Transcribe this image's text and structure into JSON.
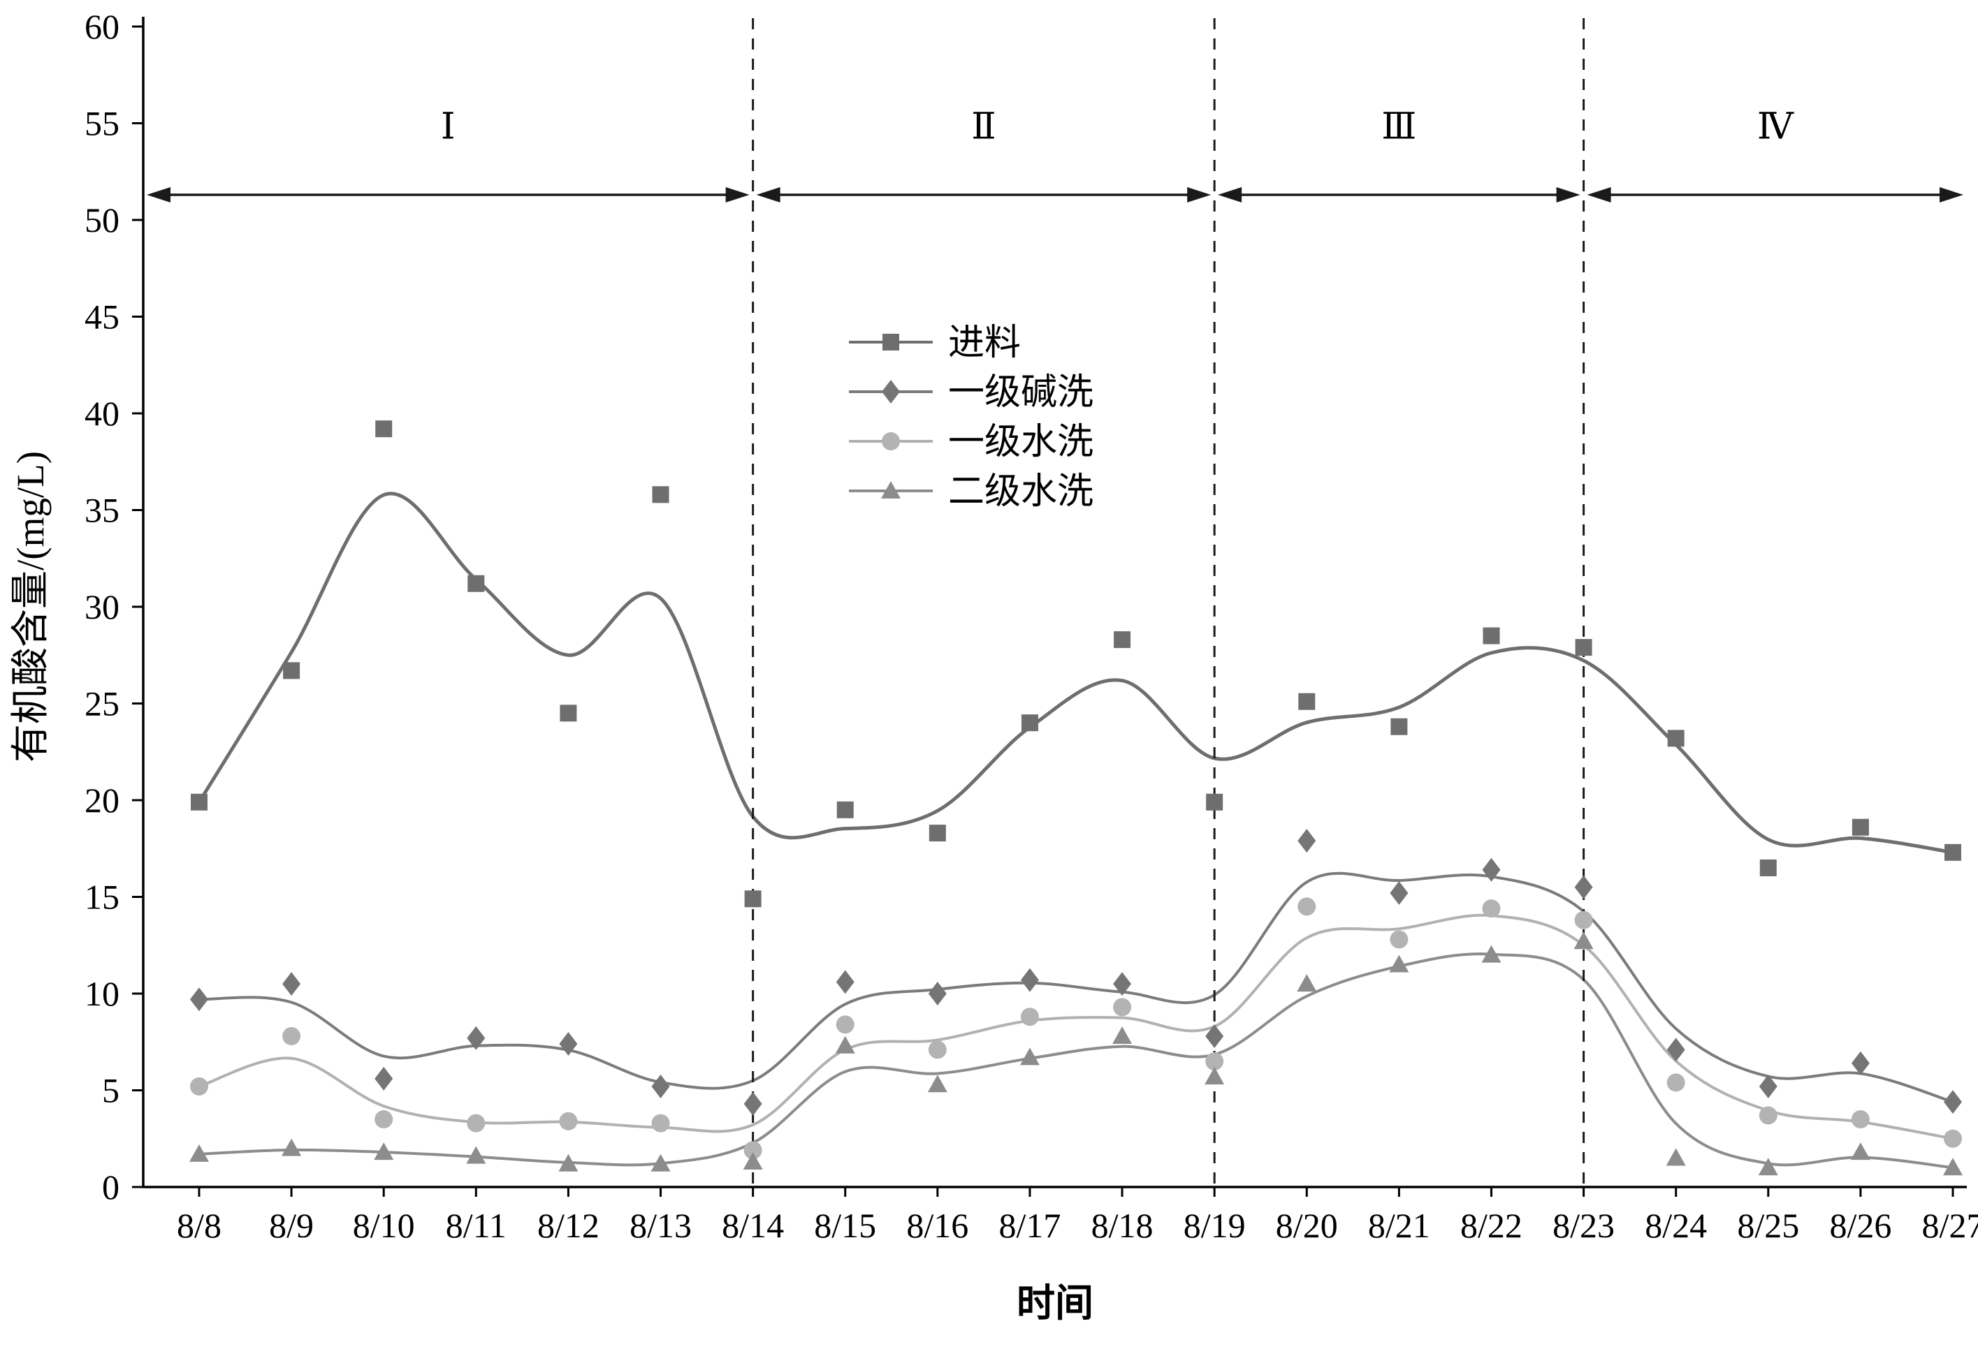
{
  "chart_data": {
    "type": "line",
    "title": "",
    "xlabel": "时间",
    "ylabel": "有机酸含量/(mg/L)",
    "ylim": [
      0,
      60
    ],
    "yticks": [
      0,
      5,
      10,
      15,
      20,
      25,
      30,
      35,
      40,
      45,
      50,
      55,
      60
    ],
    "grid": false,
    "legend_position": "inside-upper-center-left",
    "smoothing": "b-spline",
    "categories": [
      "8/8",
      "8/9",
      "8/10",
      "8/11",
      "8/12",
      "8/13",
      "8/14",
      "8/15",
      "8/16",
      "8/17",
      "8/18",
      "8/19",
      "8/20",
      "8/21",
      "8/22",
      "8/23",
      "8/24",
      "8/25",
      "8/26",
      "8/27"
    ],
    "series": [
      {
        "id": "feed",
        "name": "进料",
        "marker": "square",
        "marker_icon": "square-marker-icon",
        "color": "#6e6e6e",
        "line_color": "#6e6e6e",
        "line_width": 5,
        "values": [
          19.9,
          26.7,
          39.2,
          31.2,
          24.5,
          35.8,
          14.9,
          19.5,
          18.3,
          24.0,
          28.3,
          19.9,
          25.1,
          23.8,
          28.5,
          27.9,
          23.2,
          16.5,
          18.6,
          17.3
        ]
      },
      {
        "id": "alkali-wash-1",
        "name": "一级碱洗",
        "marker": "diamond",
        "marker_icon": "diamond-marker-icon",
        "color": "#757575",
        "line_color": "#7b7b7b",
        "line_width": 4,
        "values": [
          9.7,
          10.5,
          5.6,
          7.7,
          7.4,
          5.2,
          4.3,
          10.6,
          10.0,
          10.7,
          10.5,
          7.8,
          17.9,
          15.2,
          16.4,
          15.5,
          7.1,
          5.2,
          6.4,
          4.4
        ]
      },
      {
        "id": "water-wash-1",
        "name": "一级水洗",
        "marker": "circle",
        "marker_icon": "circle-marker-icon",
        "color": "#b3b3b3",
        "line_color": "#b1b1b1",
        "line_width": 4,
        "values": [
          5.2,
          7.8,
          3.5,
          3.3,
          3.4,
          3.3,
          1.9,
          8.4,
          7.1,
          8.8,
          9.3,
          6.5,
          14.5,
          12.8,
          14.4,
          13.8,
          5.4,
          3.7,
          3.5,
          2.5
        ]
      },
      {
        "id": "water-wash-2",
        "name": "二级水洗",
        "marker": "triangle",
        "marker_icon": "triangle-marker-icon",
        "color": "#8c8c8c",
        "line_color": "#8c8c8c",
        "line_width": 4,
        "values": [
          1.7,
          2.0,
          1.8,
          1.6,
          1.2,
          1.2,
          1.3,
          7.3,
          5.3,
          6.7,
          7.8,
          5.7,
          10.5,
          11.5,
          12.0,
          12.7,
          1.5,
          1.0,
          1.8,
          1.0
        ]
      }
    ],
    "dividers": [
      "8/14",
      "8/19",
      "8/23"
    ],
    "regions": [
      {
        "label": "Ⅰ",
        "from": "8/8",
        "to": "8/14"
      },
      {
        "label": "Ⅱ",
        "from": "8/14",
        "to": "8/19"
      },
      {
        "label": "Ⅲ",
        "from": "8/19",
        "to": "8/23"
      },
      {
        "label": "Ⅳ",
        "from": "8/23",
        "to": "8/27"
      }
    ],
    "arrow_y": 51.3,
    "region_label_y": 54.2
  }
}
